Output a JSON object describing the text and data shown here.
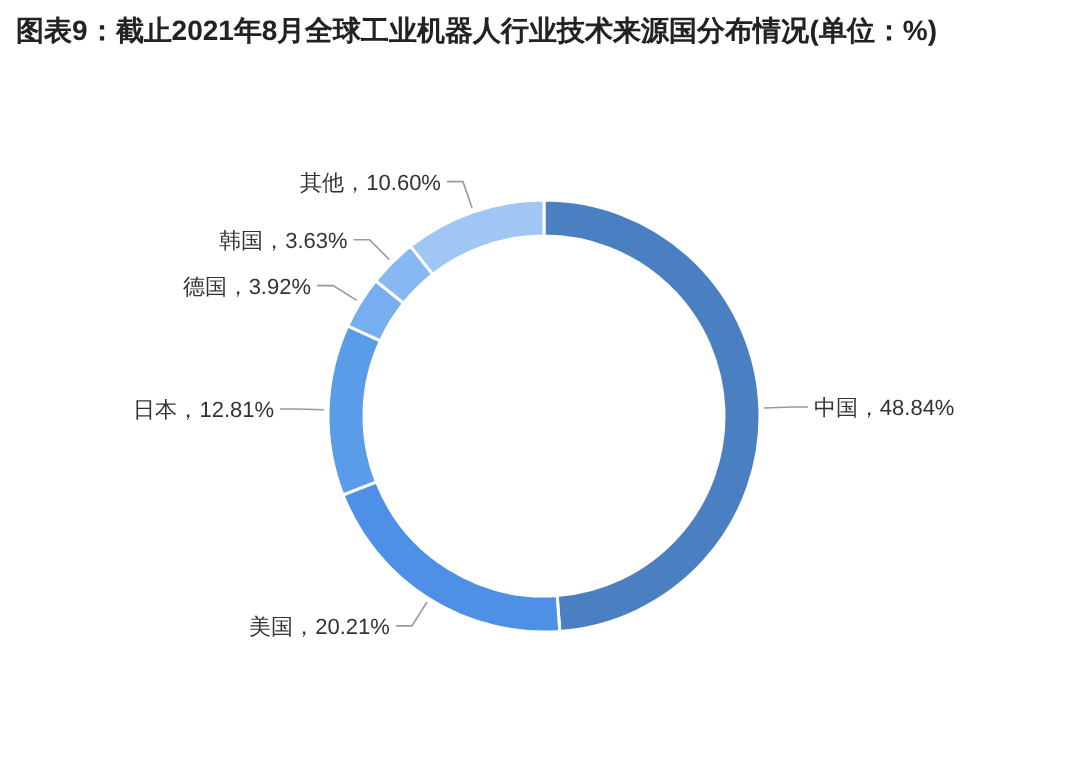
{
  "chart_data": {
    "type": "donut",
    "title": "图表9：截止2021年8月全球工业机器人行业技术来源国分布情况(单位：%)",
    "categories": [
      "中国",
      "美国",
      "日本",
      "德国",
      "韩国",
      "其他"
    ],
    "values": [
      48.84,
      20.21,
      12.81,
      3.92,
      3.63,
      10.6
    ],
    "value_labels": [
      "48.84%",
      "20.21%",
      "12.81%",
      "3.92%",
      "3.63%",
      "10.60%"
    ],
    "colors": [
      "#4a7fc1",
      "#4d90e6",
      "#5a9ce8",
      "#76aef0",
      "#88b8f2",
      "#9fc6f5"
    ],
    "legend": false
  }
}
